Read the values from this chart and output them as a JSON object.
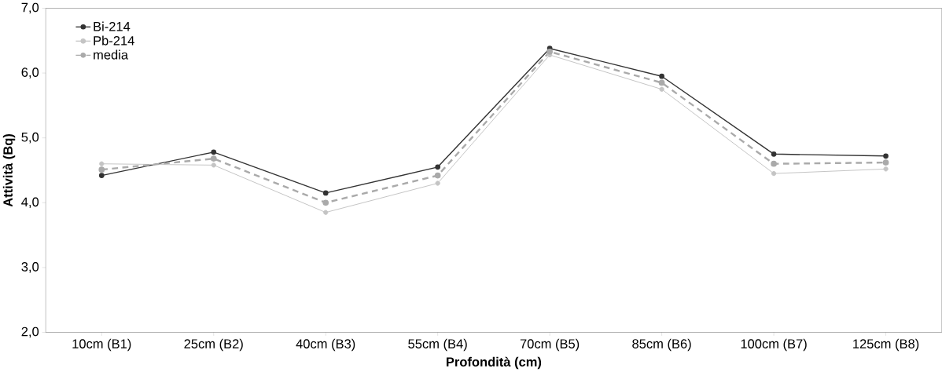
{
  "chart_data": {
    "type": "line",
    "xlabel": "Profondità (cm)",
    "ylabel": "Attività (Bq)",
    "categories": [
      "10cm (B1)",
      "25cm (B2)",
      "40cm (B3)",
      "55cm (B4)",
      "70cm (B5)",
      "85cm (B6)",
      "100cm (B7)",
      "125cm (B8)"
    ],
    "series": [
      {
        "name": "Bi-214",
        "color": "#333333",
        "line_style": "solid",
        "values": [
          4.42,
          4.78,
          4.15,
          4.55,
          6.38,
          5.95,
          4.75,
          4.72
        ]
      },
      {
        "name": "Pb-214",
        "color": "#c4c4c4",
        "line_style": "solid",
        "values": [
          4.6,
          4.58,
          3.85,
          4.3,
          6.28,
          5.75,
          4.45,
          4.52
        ]
      },
      {
        "name": "media",
        "color": "#aaaaaa",
        "line_style": "dashed",
        "values": [
          4.51,
          4.68,
          4.0,
          4.42,
          6.33,
          5.85,
          4.6,
          4.62
        ]
      }
    ],
    "ylim": [
      2,
      7
    ],
    "yticks": [
      {
        "value": 2,
        "label": "2,0"
      },
      {
        "value": 3,
        "label": "3,0"
      },
      {
        "value": 4,
        "label": "4,0"
      },
      {
        "value": 5,
        "label": "5,0"
      },
      {
        "value": 6,
        "label": "6,0"
      },
      {
        "value": 7,
        "label": "7,0"
      }
    ],
    "marker": "circle",
    "grid": false,
    "legend": "top left"
  }
}
